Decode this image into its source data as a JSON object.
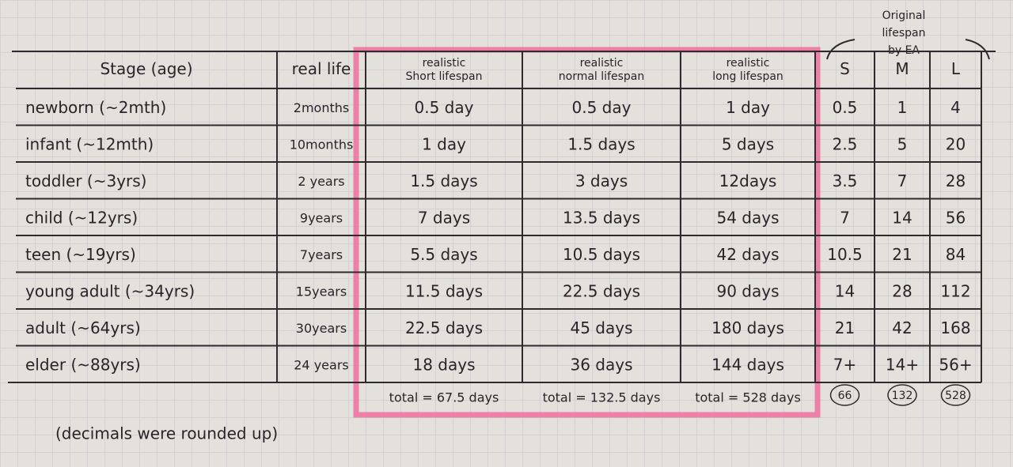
{
  "note": [
    "Original",
    "lifespan",
    "by EA"
  ],
  "table": {
    "header": [
      [
        "Stage (age)"
      ],
      [
        "real life"
      ],
      [
        "realistic",
        "Short lifespan"
      ],
      [
        "realistic",
        "normal lifespan"
      ],
      [
        "realistic",
        "long lifespan"
      ],
      [
        "S"
      ],
      [
        "M"
      ],
      [
        "L"
      ]
    ],
    "rows": [
      [
        "newborn (~2mth)",
        "2months",
        "0.5 day",
        "0.5 day",
        "1 day",
        "0.5",
        "1",
        "4"
      ],
      [
        "infant (~12mth)",
        "10months",
        "1 day",
        "1.5 days",
        "5 days",
        "2.5",
        "5",
        "20"
      ],
      [
        "toddler (~3yrs)",
        "2 years",
        "1.5 days",
        "3 days",
        "12days",
        "3.5",
        "7",
        "28"
      ],
      [
        "child (~12yrs)",
        "9years",
        "7 days",
        "13.5 days",
        "54 days",
        "7",
        "14",
        "56"
      ],
      [
        "teen (~19yrs)",
        "7years",
        "5.5 days",
        "10.5 days",
        "42 days",
        "10.5",
        "21",
        "84"
      ],
      [
        "young adult (~34yrs)",
        "15years",
        "11.5 days",
        "22.5 days",
        "90 days",
        "14",
        "28",
        "112"
      ],
      [
        "adult (~64yrs)",
        "30years",
        "22.5 days",
        "45 days",
        "180 days",
        "21",
        "42",
        "168"
      ],
      [
        "elder (~88yrs)",
        "24 years",
        "18 days",
        "36 days",
        "144 days",
        "7+",
        "14+",
        "56+"
      ]
    ],
    "totals": [
      "total = 67.5 days",
      "total = 132.5 days",
      "total = 528 days"
    ],
    "circled": [
      "66",
      "132",
      "528"
    ]
  },
  "footnote": "(decimals were rounded up)"
}
